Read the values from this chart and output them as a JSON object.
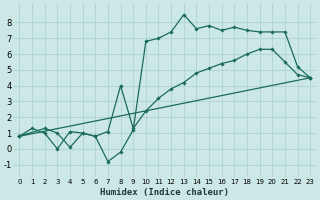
{
  "xlabel": "Humidex (Indice chaleur)",
  "bg_color": "#cce8e6",
  "line_color": "#1a6b5a",
  "grid_color": "#aacfcc",
  "xlim": [
    -0.5,
    23.5
  ],
  "ylim": [
    -1.8,
    9.2
  ],
  "xticks": [
    0,
    1,
    2,
    3,
    4,
    5,
    6,
    7,
    8,
    9,
    10,
    11,
    12,
    13,
    14,
    15,
    16,
    17,
    18,
    19,
    20,
    21,
    22,
    23
  ],
  "yticks": [
    -1,
    0,
    1,
    2,
    3,
    4,
    5,
    6,
    7,
    8
  ],
  "curve1_x": [
    0,
    1,
    2,
    3,
    4,
    5,
    6,
    7,
    8,
    9,
    10,
    11,
    12,
    13,
    14,
    15,
    16,
    17,
    18,
    19,
    20,
    21,
    22,
    23
  ],
  "curve1_y": [
    0.8,
    1.3,
    1.0,
    0.0,
    1.1,
    1.0,
    0.8,
    -0.8,
    -0.2,
    1.2,
    6.8,
    7.0,
    7.4,
    8.5,
    7.6,
    7.8,
    7.5,
    7.7,
    7.5,
    7.4,
    7.4,
    7.4,
    5.2,
    4.5
  ],
  "curve2_x": [
    0,
    2,
    3,
    4,
    5,
    6,
    7,
    8,
    9,
    10,
    11,
    12,
    13,
    14,
    15,
    16,
    17,
    18,
    19,
    20,
    21,
    22,
    23
  ],
  "curve2_y": [
    0.8,
    1.3,
    1.0,
    0.1,
    1.0,
    0.8,
    1.1,
    4.0,
    1.3,
    2.4,
    3.2,
    3.8,
    4.2,
    4.8,
    5.1,
    5.4,
    5.6,
    6.0,
    6.3,
    6.3,
    5.5,
    4.7,
    4.5
  ],
  "line3_x": [
    0,
    23
  ],
  "line3_y": [
    0.8,
    4.5
  ],
  "xlabel_fontsize": 6.5,
  "tick_fontsize_x": 5,
  "tick_fontsize_y": 6,
  "linewidth": 0.9,
  "markersize": 1.8
}
